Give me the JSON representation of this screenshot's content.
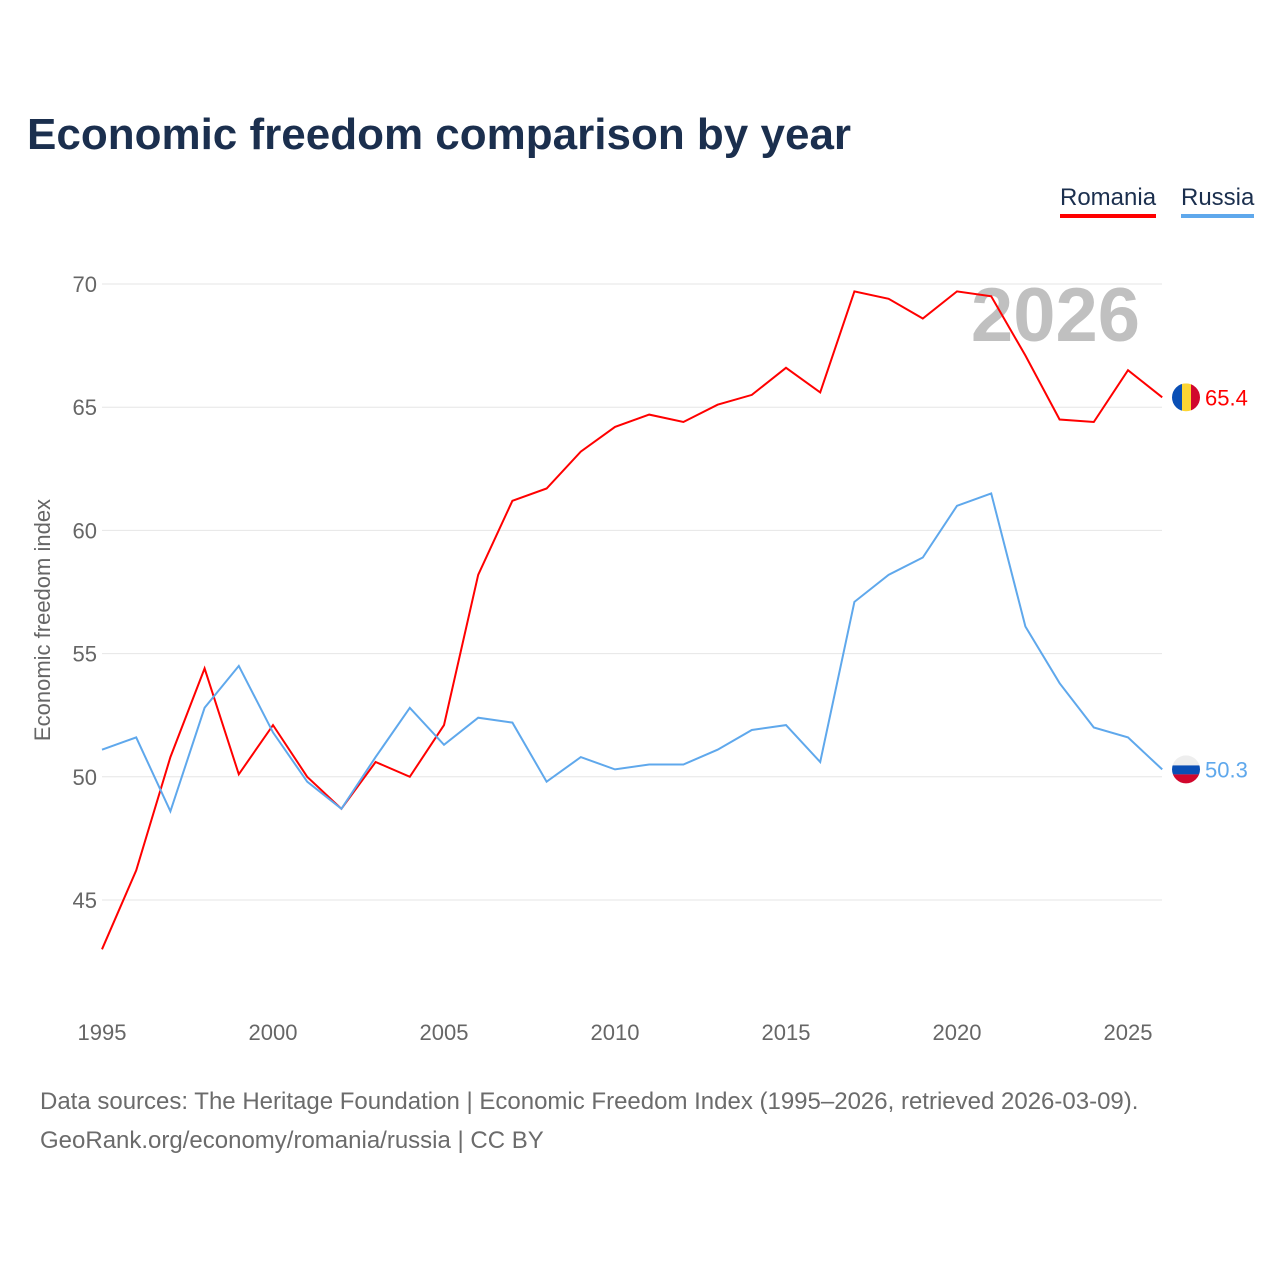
{
  "chart_data": {
    "type": "line",
    "title": "Economic freedom comparison by year",
    "xlabel": "",
    "ylabel": "Economic freedom index",
    "watermark_year": "2026",
    "xlim": [
      1995,
      2026
    ],
    "ylim": [
      41.5,
      71.5
    ],
    "x_ticks": [
      "1995",
      "2000",
      "2005",
      "2010",
      "2015",
      "2020",
      "2025"
    ],
    "y_ticks": [
      "45",
      "50",
      "55",
      "60",
      "65",
      "70"
    ],
    "grid": true,
    "legend_position": "top-right",
    "x": [
      1995,
      1996,
      1997,
      1998,
      1999,
      2000,
      2001,
      2002,
      2003,
      2004,
      2005,
      2006,
      2007,
      2008,
      2009,
      2010,
      2011,
      2012,
      2013,
      2014,
      2015,
      2016,
      2017,
      2018,
      2019,
      2020,
      2021,
      2022,
      2023,
      2024,
      2025,
      2026
    ],
    "series": [
      {
        "name": "Romania",
        "color": "#ff0000",
        "end_label": "65.4",
        "values": [
          43.0,
          46.2,
          50.8,
          54.4,
          50.1,
          52.1,
          50.0,
          48.7,
          50.6,
          50.0,
          52.1,
          58.2,
          61.2,
          61.7,
          63.2,
          64.2,
          64.7,
          64.4,
          65.1,
          65.5,
          66.6,
          65.6,
          69.7,
          69.4,
          68.6,
          69.7,
          69.5,
          67.1,
          64.5,
          64.4,
          66.5,
          65.4
        ]
      },
      {
        "name": "Russia",
        "color": "#5fa8ec",
        "end_label": "50.3",
        "values": [
          51.1,
          51.6,
          48.6,
          52.8,
          54.5,
          51.8,
          49.8,
          48.7,
          50.8,
          52.8,
          51.3,
          52.4,
          52.2,
          49.8,
          50.8,
          50.3,
          50.5,
          50.5,
          51.1,
          51.9,
          52.1,
          50.6,
          57.1,
          58.2,
          58.9,
          61.0,
          61.5,
          56.1,
          53.8,
          52.0,
          51.6,
          50.3
        ]
      }
    ]
  },
  "footer": {
    "line1": "Data sources: The Heritage Foundation | Economic Freedom Index (1995–2026, retrieved 2026-03-09).",
    "line2": "GeoRank.org/economy/romania/russia | CC BY"
  }
}
